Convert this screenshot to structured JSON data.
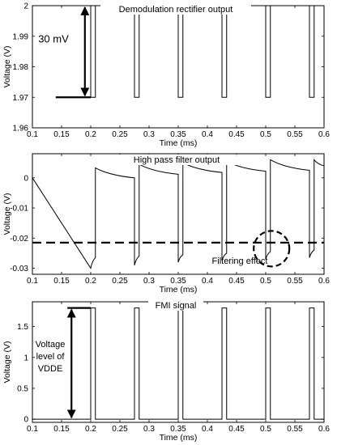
{
  "chart_data": [
    {
      "type": "line",
      "title": "Demodulation rectifier output",
      "xlabel": "Time (ms)",
      "ylabel": "Voltage (V)",
      "xlim": [
        0.1,
        0.6
      ],
      "ylim": [
        1.96,
        2.0
      ],
      "xticks": [
        0.1,
        0.15,
        0.2,
        0.25,
        0.3,
        0.35,
        0.4,
        0.45,
        0.5,
        0.55,
        0.6
      ],
      "xtick_labels": [
        "0.1",
        "0.15",
        "0.2",
        "0.25",
        "0.3",
        "0.35",
        "0.4",
        "0.45",
        "0.5",
        "0.55",
        "0.6"
      ],
      "yticks": [
        1.96,
        1.97,
        1.98,
        1.99,
        2.0
      ],
      "ytick_labels": [
        "1.96",
        "1.97",
        "1.98",
        "1.99",
        "2"
      ],
      "grid": false,
      "high_level": 2.0,
      "low_level": 1.97,
      "dip_starts": [
        0.2,
        0.275,
        0.35,
        0.425,
        0.5,
        0.575
      ],
      "dip_width": 0.008,
      "annotations": [
        {
          "text": "30 mV",
          "kind": "double-arrow",
          "x": 0.19,
          "y_from": 1.97,
          "y_to": 2.0
        }
      ],
      "reference_line": {
        "x_from": 0.14,
        "x_to": 0.2,
        "y": 1.97
      }
    },
    {
      "type": "line",
      "title": "High pass filter output",
      "xlabel": "Time (ms)",
      "ylabel": "Voltage (V)",
      "xlim": [
        0.1,
        0.6
      ],
      "ylim": [
        -0.032,
        0.008
      ],
      "xticks": [
        0.1,
        0.15,
        0.2,
        0.25,
        0.3,
        0.35,
        0.4,
        0.45,
        0.5,
        0.55,
        0.6
      ],
      "xtick_labels": [
        "0.1",
        "0.15",
        "0.2",
        "0.25",
        "0.3",
        "0.35",
        "0.4",
        "0.45",
        "0.5",
        "0.55",
        "0.6"
      ],
      "yticks": [
        -0.03,
        -0.02,
        -0.01,
        0
      ],
      "ytick_labels": [
        "-0.03",
        "-0.02",
        "-0.01",
        "0"
      ],
      "grid": false,
      "initial_level": 0,
      "pulses": [
        {
          "x": 0.2,
          "drop_to": -0.03,
          "recover_to": -0.0265
        },
        {
          "x": 0.208,
          "rise_to": 0.0033,
          "decay_to": 0.0
        },
        {
          "x": 0.275,
          "drop_to": -0.029,
          "recover_to": -0.026
        },
        {
          "x": 0.283,
          "rise_to": 0.0045,
          "decay_to": 0.0012
        },
        {
          "x": 0.35,
          "drop_to": -0.028,
          "recover_to": -0.0255
        },
        {
          "x": 0.358,
          "rise_to": 0.005,
          "decay_to": 0.0018
        },
        {
          "x": 0.425,
          "drop_to": -0.0275,
          "recover_to": -0.025
        },
        {
          "x": 0.433,
          "rise_to": 0.0055,
          "decay_to": 0.0022
        },
        {
          "x": 0.5,
          "drop_to": -0.027,
          "recover_to": -0.0245
        },
        {
          "x": 0.508,
          "rise_to": 0.006,
          "decay_to": 0.0025
        },
        {
          "x": 0.575,
          "drop_to": -0.0265,
          "recover_to": -0.024
        },
        {
          "x": 0.583,
          "rise_to": 0.006,
          "decay_to": 0.004
        }
      ],
      "dashed_line": {
        "y": -0.0215
      },
      "circle_marker": {
        "x": 0.51,
        "y": -0.0235
      },
      "annotations": [
        {
          "text": "Filtering  effect"
        }
      ]
    },
    {
      "type": "line",
      "title": "FMI signal",
      "xlabel": "Time (ms)",
      "ylabel": "Voltage (V)",
      "xlim": [
        0.1,
        0.6
      ],
      "ylim": [
        -0.05,
        1.9
      ],
      "xticks": [
        0.1,
        0.15,
        0.2,
        0.25,
        0.3,
        0.35,
        0.4,
        0.45,
        0.5,
        0.55,
        0.6
      ],
      "xtick_labels": [
        "0.1",
        "0.15",
        "0.2",
        "0.25",
        "0.3",
        "0.35",
        "0.4",
        "0.45",
        "0.5",
        "0.55",
        "0.6"
      ],
      "yticks": [
        0,
        0.5,
        1,
        1.5
      ],
      "ytick_labels": [
        "0",
        "0.5",
        "1",
        "1.5"
      ],
      "grid": false,
      "high_level": 1.8,
      "low_level": 0,
      "pulse_starts": [
        0.2,
        0.275,
        0.35,
        0.425,
        0.5,
        0.575
      ],
      "pulse_width": 0.008,
      "annotations": [
        {
          "text": [
            "Voltage",
            "level of",
            "VDDE"
          ],
          "kind": "double-arrow",
          "x": 0.167,
          "y_from": 0,
          "y_to": 1.8
        }
      ],
      "reference_line": {
        "x_from": 0.16,
        "x_to": 0.2,
        "y": 1.8
      }
    }
  ]
}
